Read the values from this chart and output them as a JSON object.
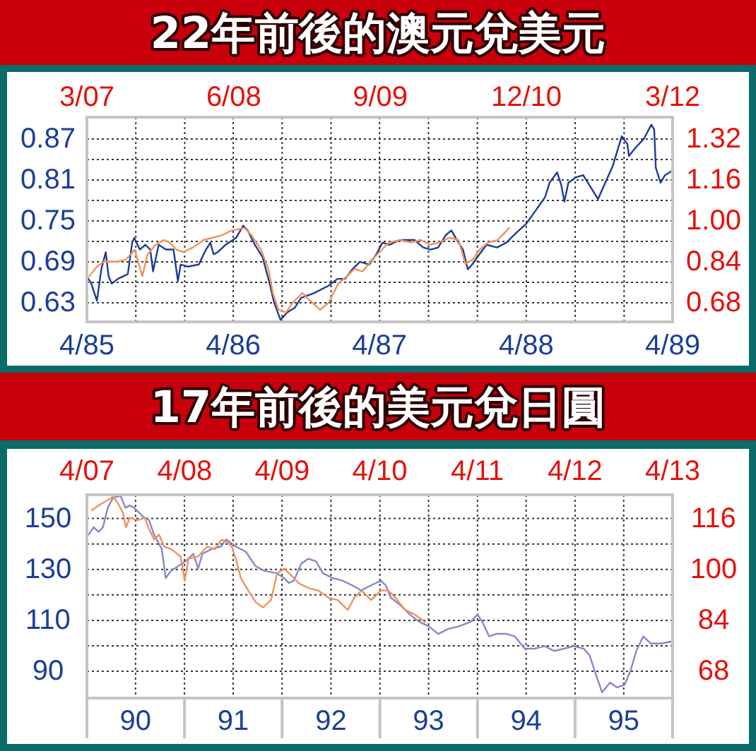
{
  "chart_data": [
    {
      "type": "line",
      "title": "22年前後的澳元兌美元",
      "grid": true,
      "xlim": [
        "1985-04",
        "1989-04"
      ],
      "xticks": [
        {
          "value": "1985-04",
          "label": "4/85"
        },
        {
          "value": "1985-08",
          "label": null
        },
        {
          "value": "1985-12",
          "label": null
        },
        {
          "value": "1986-04",
          "label": "4/86"
        },
        {
          "value": "1986-08",
          "label": null
        },
        {
          "value": "1986-12",
          "label": null
        },
        {
          "value": "1987-04",
          "label": "4/87"
        },
        {
          "value": "1987-08",
          "label": null
        },
        {
          "value": "1987-12",
          "label": null
        },
        {
          "value": "1988-04",
          "label": "4/88"
        },
        {
          "value": "1988-08",
          "label": null
        },
        {
          "value": "1988-12",
          "label": null
        },
        {
          "value": "1989-04",
          "label": "4/89"
        }
      ],
      "ylim": [
        0.602,
        0.902
      ],
      "yticks": [
        0.63,
        {
          "value": 0.66,
          "label": null
        },
        0.69,
        {
          "value": 0.72,
          "label": null
        },
        0.75,
        {
          "value": 0.78,
          "label": null
        },
        0.81,
        {
          "value": 0.84,
          "label": null
        },
        0.87
      ],
      "series": [
        {
          "color": "#1e3c96",
          "x": [
            "1985-04-01",
            "1985-04-12",
            "1985-04-26",
            "1985-05-07",
            "1985-05-18",
            "1985-05-25",
            "1985-06-02",
            "1985-06-17",
            "1985-07-12",
            "1985-07-23",
            "1985-07-28",
            "1985-08-11",
            "1985-08-25",
            "1985-09-06",
            "1985-09-13",
            "1985-09-27",
            "1985-10-15",
            "1985-11-03",
            "1985-11-14",
            "1985-11-21",
            "1985-12-09",
            "1986-01-05",
            "1986-01-23",
            "1986-02-03",
            "1986-02-11",
            "1986-02-21",
            "1986-03-13",
            "1986-04-08",
            "1986-04-26",
            "1986-05-07",
            "1986-05-25",
            "1986-06-13",
            "1986-07-01",
            "1986-07-12",
            "1986-07-28",
            "1986-08-14",
            "1986-09-02",
            "1986-09-17",
            "1986-10-19",
            "1986-11-25",
            "1986-12-17",
            "1987-01-05",
            "1987-01-23",
            "1987-02-11",
            "1987-03-06",
            "1987-03-24",
            "1987-04-08",
            "1987-04-26",
            "1987-05-21",
            "1987-06-27",
            "1987-07-19",
            "1987-08-07",
            "1987-08-25",
            "1987-09-13",
            "1987-09-27",
            "1987-10-08",
            "1987-10-26",
            "1987-11-07",
            "1987-11-18",
            "1987-12-06",
            "1987-12-24",
            "1988-01-19",
            "1988-02-11",
            "1988-03-06",
            "1988-04-01",
            "1988-04-23",
            "1988-05-18",
            "1988-05-29",
            "1988-06-17",
            "1988-06-27",
            "1988-07-05",
            "1988-07-15",
            "1988-08-03",
            "1988-08-21",
            "1988-09-09",
            "1988-09-27",
            "1988-10-15",
            "1988-11-03",
            "1988-11-25",
            "1988-12-09",
            "1988-12-13",
            "1989-01-01",
            "1989-01-19",
            "1989-02-07",
            "1989-02-14",
            "1989-02-18",
            "1989-03-02",
            "1989-03-13",
            "1989-04-01"
          ],
          "values": [
            0.669,
            0.658,
            0.633,
            0.679,
            0.704,
            0.669,
            0.658,
            0.665,
            0.672,
            0.718,
            0.725,
            0.708,
            0.715,
            0.708,
            0.676,
            0.715,
            0.708,
            0.708,
            0.662,
            0.686,
            0.683,
            0.686,
            0.708,
            0.718,
            0.701,
            0.704,
            0.715,
            0.725,
            0.743,
            0.736,
            0.715,
            0.697,
            0.658,
            0.63,
            0.605,
            0.616,
            0.623,
            0.637,
            0.644,
            0.655,
            0.665,
            0.665,
            0.679,
            0.69,
            0.686,
            0.701,
            0.718,
            0.715,
            0.722,
            0.722,
            0.711,
            0.708,
            0.711,
            0.729,
            0.736,
            0.725,
            0.708,
            0.679,
            0.686,
            0.701,
            0.715,
            0.711,
            0.718,
            0.732,
            0.746,
            0.764,
            0.785,
            0.806,
            0.821,
            0.803,
            0.778,
            0.806,
            0.814,
            0.817,
            0.799,
            0.782,
            0.806,
            0.831,
            0.874,
            0.863,
            0.845,
            0.859,
            0.87,
            0.891,
            0.884,
            0.828,
            0.806,
            0.817,
            0.824
          ]
        }
      ]
    },
    {
      "type": "line",
      "xlim": [
        "2007-03",
        "2012-03"
      ],
      "xticks": [
        {
          "value": "2007-03",
          "label": "3/07"
        },
        {
          "value": "2008-06",
          "label": "6/08"
        },
        {
          "value": "2009-09",
          "label": "9/09"
        },
        {
          "value": "2010-12",
          "label": "12/10"
        },
        {
          "value": "2012-03",
          "label": "3/12"
        }
      ],
      "ylim": [
        0.605,
        1.405
      ],
      "yticks": [
        0.68,
        0.84,
        {
          "value": 1.0,
          "label": "1.00"
        },
        1.16,
        1.32
      ],
      "series": [
        {
          "color": "#f0915e",
          "x": [
            "2007-03-09",
            "2007-04-01",
            "2007-04-23",
            "2007-06-02",
            "2007-07-01",
            "2007-07-28",
            "2007-08-21",
            "2007-09-06",
            "2007-10-01",
            "2007-10-28",
            "2007-11-14",
            "2007-12-06",
            "2007-12-27",
            "2008-01-28",
            "2008-02-28",
            "2008-03-27",
            "2008-04-26",
            "2008-05-25",
            "2008-07-05",
            "2008-07-26",
            "2008-08-25",
            "2008-09-17",
            "2008-10-01",
            "2008-10-19",
            "2008-11-11",
            "2008-12-02",
            "2009-01-01",
            "2009-01-23",
            "2009-02-25",
            "2009-03-24",
            "2009-04-23",
            "2009-05-21",
            "2009-06-13",
            "2009-07-08",
            "2009-08-07",
            "2009-09-06",
            "2009-09-27",
            "2009-11-03",
            "2009-12-06",
            "2010-01-05",
            "2010-02-03",
            "2010-03-02",
            "2010-04-05",
            "2010-05-03",
            "2010-05-25",
            "2010-06-17",
            "2010-07-08",
            "2010-08-03",
            "2010-09-02",
            "2010-09-24",
            "2010-10-08"
          ],
          "values": [
            0.784,
            0.821,
            0.84,
            0.84,
            0.849,
            0.887,
            0.784,
            0.868,
            0.906,
            0.925,
            0.915,
            0.887,
            0.878,
            0.897,
            0.925,
            0.934,
            0.944,
            0.962,
            0.972,
            0.944,
            0.887,
            0.812,
            0.718,
            0.652,
            0.642,
            0.68,
            0.718,
            0.69,
            0.652,
            0.68,
            0.755,
            0.784,
            0.812,
            0.802,
            0.849,
            0.887,
            0.915,
            0.925,
            0.915,
            0.925,
            0.906,
            0.915,
            0.934,
            0.925,
            0.831,
            0.849,
            0.887,
            0.915,
            0.925,
            0.953,
            0.972
          ]
        }
      ]
    },
    {
      "type": "line",
      "title": "17年前後的美元兌日圓",
      "grid": true,
      "xlim": [
        "1990",
        "1996"
      ],
      "xticks": [
        {
          "value": "1990",
          "label": null
        },
        {
          "value": "1990-07-02",
          "label": "90"
        },
        {
          "value": "1991",
          "label": null
        },
        {
          "value": "1991-07-02",
          "label": "91"
        },
        {
          "value": "1992",
          "label": null
        },
        {
          "value": "1992-07-02",
          "label": "92"
        },
        {
          "value": "1993",
          "label": null
        },
        {
          "value": "1993-07-02",
          "label": "93"
        },
        {
          "value": "1994",
          "label": null
        },
        {
          "value": "1994-07-02",
          "label": "94"
        },
        {
          "value": "1995",
          "label": null
        },
        {
          "value": "1995-07-02",
          "label": "95"
        },
        {
          "value": "1996",
          "label": null
        }
      ],
      "ylim": [
        79.5,
        159.3
      ],
      "yticks": [
        90,
        {
          "value": 100,
          "label": null
        },
        110,
        {
          "value": 120,
          "label": null
        },
        130,
        {
          "value": 140,
          "label": null
        },
        150
      ],
      "series": [
        {
          "color": "#8489c9",
          "x": [
            "1990-01-08",
            "1990-01-26",
            "1990-02-14",
            "1990-03-02",
            "1990-03-20",
            "1990-04-08",
            "1990-05-07",
            "1990-05-25",
            "1990-06-09",
            "1990-06-27",
            "1990-07-15",
            "1990-08-03",
            "1990-08-21",
            "1990-09-09",
            "1990-10-08",
            "1990-10-23",
            "1990-11-11",
            "1990-12-09",
            "1991-01-05",
            "1991-02-03",
            "1991-02-21",
            "1991-03-09",
            "1991-04-12",
            "1991-05-18",
            "1991-06-06",
            "1991-07-12",
            "1991-08-18",
            "1991-09-24",
            "1991-10-28",
            "1991-12-13",
            "1992-01-08",
            "1992-01-26",
            "1992-02-14",
            "1992-03-13",
            "1992-04-08",
            "1992-05-07",
            "1992-06-02",
            "1992-07-08",
            "1992-08-14",
            "1992-09-20",
            "1992-10-23",
            "1992-11-28",
            "1993-01-05",
            "1993-01-23",
            "1993-02-11",
            "1993-03-17",
            "1993-04-23",
            "1993-05-29",
            "1993-07-05",
            "1993-08-07",
            "1993-09-13",
            "1993-10-19",
            "1993-12-06",
            "1994-01-01",
            "1994-01-19",
            "1994-02-14",
            "1994-03-13",
            "1994-04-19",
            "1994-05-21",
            "1994-06-27",
            "1994-08-03",
            "1994-09-09",
            "1994-10-15",
            "1994-11-21",
            "1994-12-27",
            "1995-02-03",
            "1995-02-25",
            "1995-03-24",
            "1995-04-12",
            "1995-05-12",
            "1995-06-06",
            "1995-07-05",
            "1995-07-28",
            "1995-08-18",
            "1995-09-13",
            "1995-10-12",
            "1995-11-18",
            "1996-01-01"
          ],
          "values": [
            143.7,
            146.6,
            144.7,
            146.6,
            154.2,
            158.0,
            158.9,
            154.2,
            155.1,
            154.2,
            152.3,
            150.4,
            149.4,
            143.7,
            138.0,
            126.6,
            129.4,
            131.3,
            133.2,
            136.1,
            130.4,
            136.1,
            138.0,
            139.0,
            141.8,
            139.0,
            137.0,
            131.3,
            129.4,
            128.5,
            126.6,
            124.7,
            125.6,
            132.3,
            134.2,
            133.2,
            128.5,
            126.6,
            125.6,
            123.7,
            121.8,
            123.7,
            125.6,
            123.7,
            118.9,
            116.1,
            112.3,
            109.4,
            107.5,
            104.7,
            106.6,
            107.5,
            109.4,
            112.3,
            109.4,
            103.7,
            104.7,
            104.7,
            103.7,
            98.9,
            98.9,
            99.9,
            98.0,
            98.9,
            99.9,
            98.9,
            96.1,
            87.5,
            81.8,
            85.6,
            83.7,
            84.7,
            90.4,
            98.0,
            103.7,
            100.9,
            100.9,
            101.8
          ]
        }
      ]
    },
    {
      "type": "line",
      "xlim": [
        "2007-04",
        "2013-04"
      ],
      "xticks": [
        {
          "value": "2007-04",
          "label": "4/07"
        },
        {
          "value": "2008-04",
          "label": "4/08"
        },
        {
          "value": "2009-04",
          "label": "4/09"
        },
        {
          "value": "2010-04",
          "label": "4/10"
        },
        {
          "value": "2011-04",
          "label": "4/11"
        },
        {
          "value": "2012-04",
          "label": "4/12"
        },
        {
          "value": "2013-04",
          "label": "4/13"
        }
      ],
      "ylim": [
        59.6,
        123.5
      ],
      "yticks": [
        68,
        84,
        100,
        116
      ],
      "series": [
        {
          "color": "#f0925f",
          "x": [
            "2007-04-19",
            "2007-05-14",
            "2007-06-13",
            "2007-07-08",
            "2007-07-26",
            "2007-08-14",
            "2007-08-25",
            "2007-09-09",
            "2007-10-08",
            "2007-11-03",
            "2007-11-21",
            "2007-12-09",
            "2007-12-27",
            "2008-01-15",
            "2008-02-11",
            "2008-03-17",
            "2008-04-01",
            "2008-04-15",
            "2008-05-21",
            "2008-06-24",
            "2008-07-23",
            "2008-08-18",
            "2008-09-06",
            "2008-09-24",
            "2008-10-12",
            "2008-10-28",
            "2008-11-25",
            "2008-12-24",
            "2009-01-19",
            "2009-02-18",
            "2009-03-13",
            "2009-04-08",
            "2009-05-07",
            "2009-06-02",
            "2009-07-08",
            "2009-08-14",
            "2009-09-20",
            "2009-10-26",
            "2009-12-02",
            "2009-12-27",
            "2010-01-23",
            "2010-02-28",
            "2010-04-05",
            "2010-05-03",
            "2010-05-29",
            "2010-07-05",
            "2010-08-11",
            "2010-09-17"
          ],
          "values": [
            118.6,
            120.1,
            121.6,
            122.9,
            120.9,
            117.8,
            113.3,
            116.3,
            115.5,
            116.3,
            112.5,
            109.4,
            111.0,
            107.2,
            106.4,
            104.1,
            96.5,
            103.4,
            104.1,
            107.2,
            106.4,
            109.4,
            108.7,
            107.2,
            102.6,
            97.3,
            93.4,
            89.6,
            88.1,
            90.4,
            98.8,
            100.3,
            98.0,
            95.7,
            94.2,
            93.4,
            91.2,
            90.4,
            87.3,
            91.2,
            93.4,
            90.4,
            93.4,
            93.4,
            91.2,
            87.3,
            85.8,
            83.5
          ]
        }
      ]
    }
  ]
}
